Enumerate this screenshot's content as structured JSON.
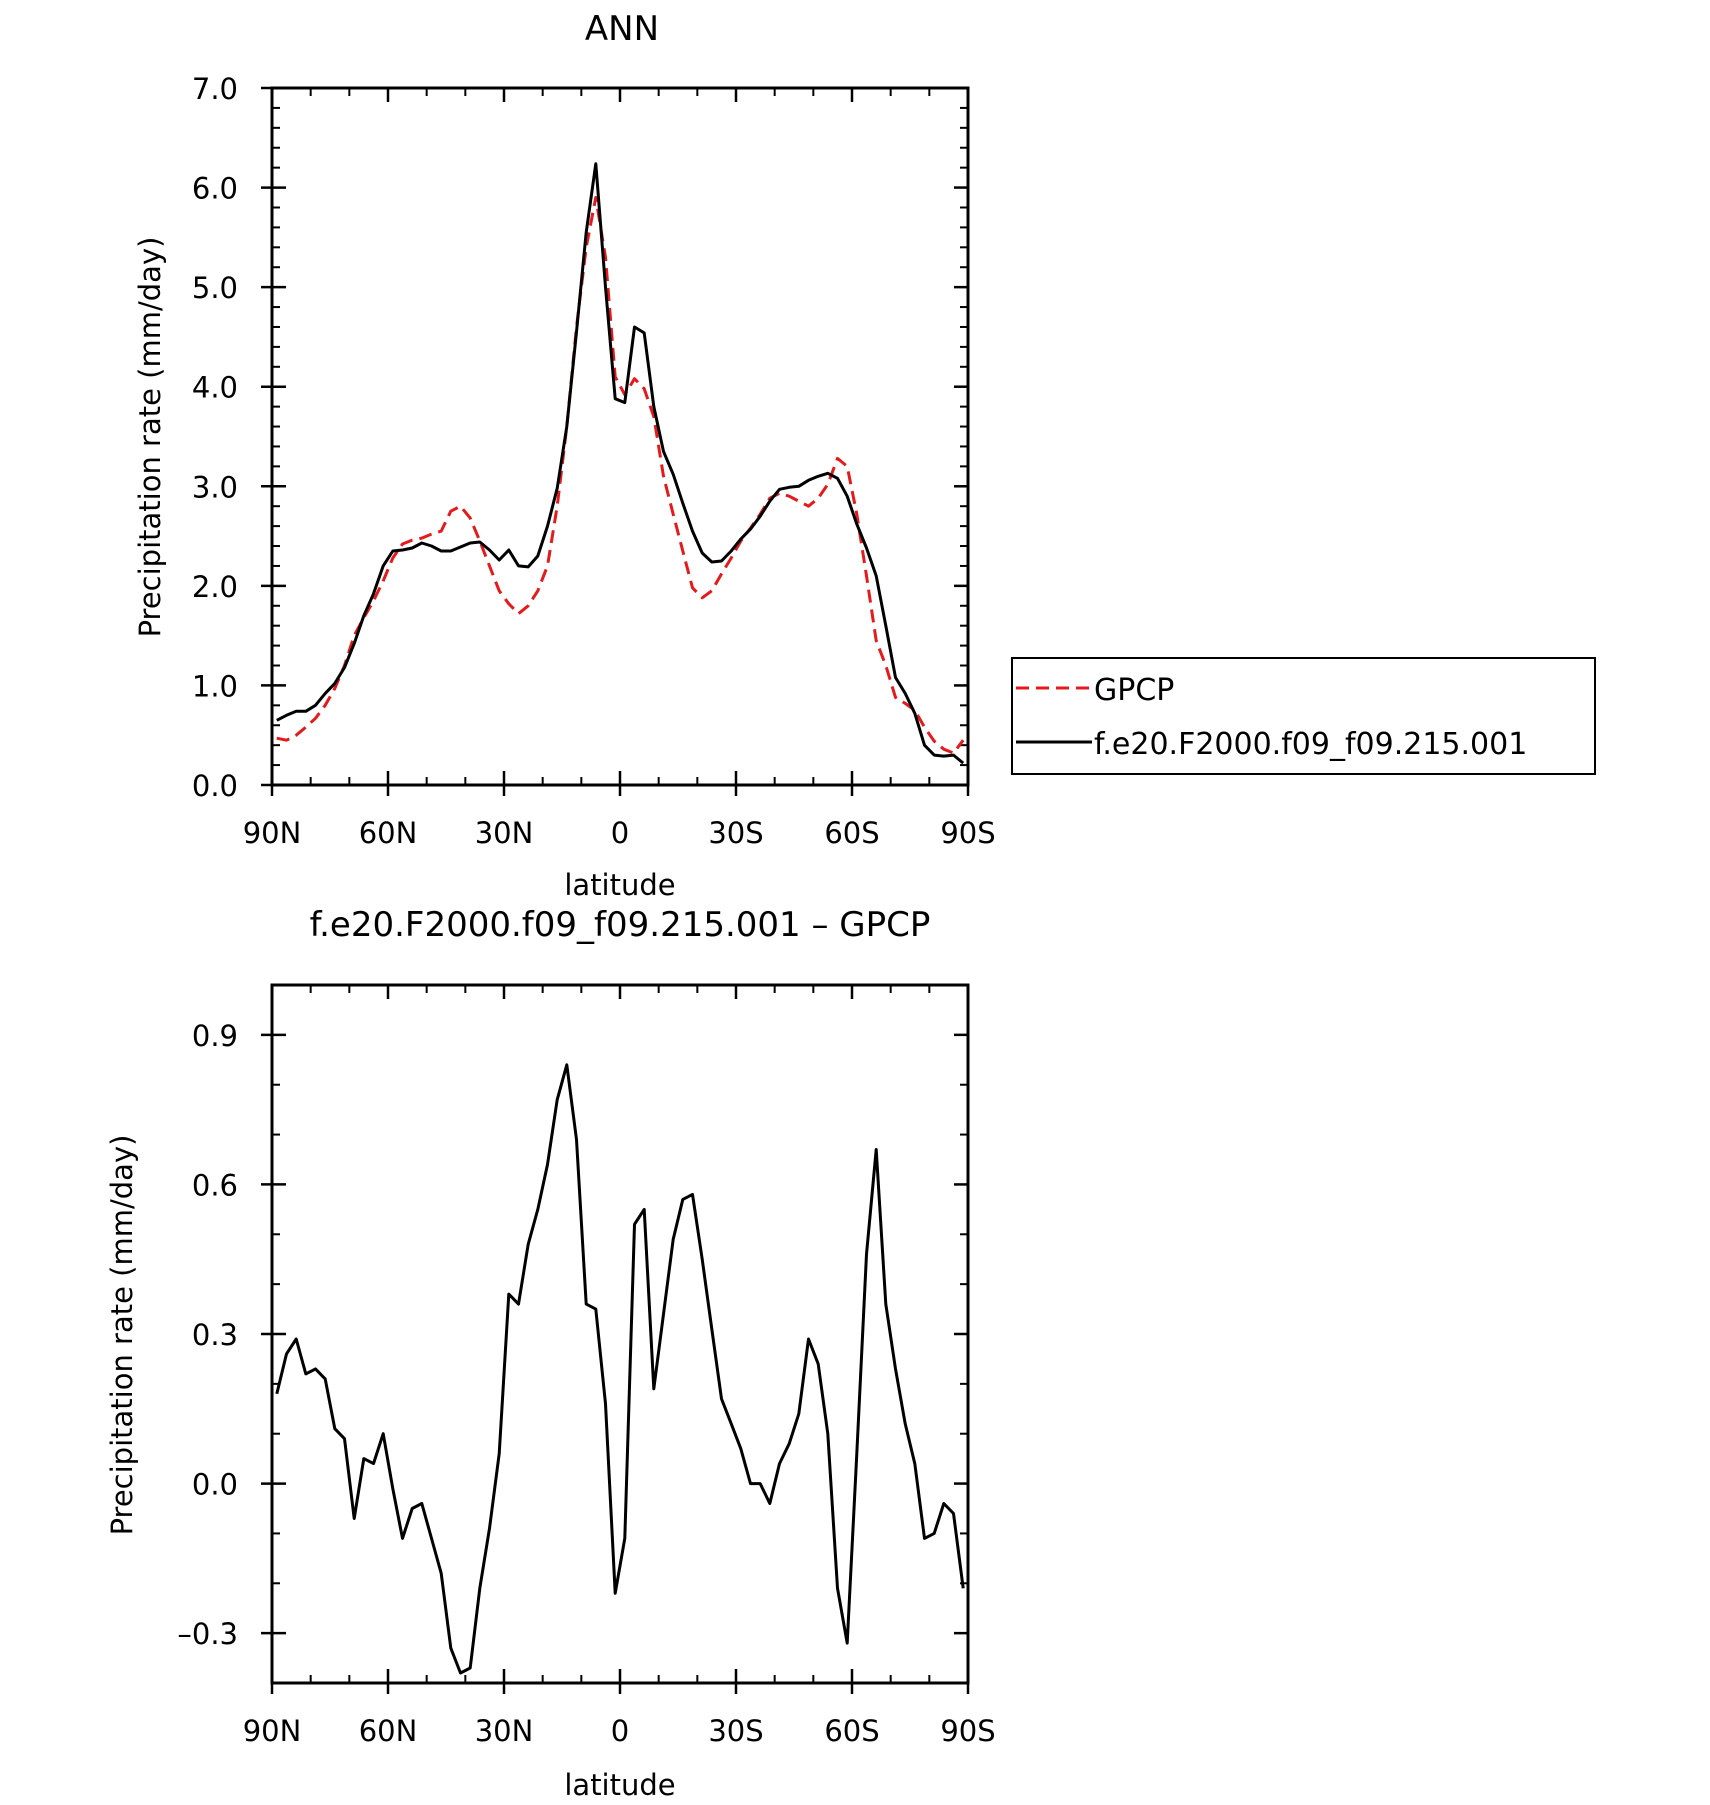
{
  "chart_data": [
    {
      "type": "line",
      "title": "ANN",
      "xlabel": "latitude",
      "ylabel": "Precipitation rate (mm/day)",
      "xlim": [
        90,
        -90
      ],
      "ylim": [
        0.0,
        7.0
      ],
      "x_ticks": [
        90,
        60,
        30,
        0,
        -30,
        -60,
        -90
      ],
      "x_tick_labels": [
        "90N",
        "60N",
        "30N",
        "0",
        "30S",
        "60S",
        "90S"
      ],
      "y_ticks": [
        0,
        1,
        2,
        3,
        4,
        5,
        6,
        7
      ],
      "y_tick_labels": [
        "0.0",
        "1.0",
        "2.0",
        "3.0",
        "4.0",
        "5.0",
        "6.0",
        "7.0"
      ],
      "grid": false,
      "legend": {
        "placement": "outside-right",
        "entries": [
          "GPCP",
          "f.e20.F2000.f09_f09.215.001"
        ]
      },
      "series": [
        {
          "name": "GPCP",
          "color": "#e41a1c",
          "style": "dashed",
          "points": [
            [
              88.75,
              0.47
            ],
            [
              86.25,
              0.45
            ],
            [
              83.75,
              0.5
            ],
            [
              81.25,
              0.58
            ],
            [
              78.75,
              0.67
            ],
            [
              76.25,
              0.8
            ],
            [
              73.75,
              0.97
            ],
            [
              71.25,
              1.2
            ],
            [
              68.75,
              1.5
            ],
            [
              66.25,
              1.68
            ],
            [
              63.75,
              1.85
            ],
            [
              61.25,
              2.05
            ],
            [
              58.75,
              2.28
            ],
            [
              56.25,
              2.42
            ],
            [
              53.75,
              2.46
            ],
            [
              51.25,
              2.48
            ],
            [
              48.75,
              2.52
            ],
            [
              46.25,
              2.55
            ],
            [
              43.75,
              2.75
            ],
            [
              41.25,
              2.8
            ],
            [
              38.75,
              2.68
            ],
            [
              36.25,
              2.45
            ],
            [
              33.75,
              2.2
            ],
            [
              31.25,
              1.95
            ],
            [
              28.75,
              1.82
            ],
            [
              26.25,
              1.72
            ],
            [
              23.75,
              1.8
            ],
            [
              21.25,
              1.95
            ],
            [
              18.75,
              2.2
            ],
            [
              16.25,
              2.8
            ],
            [
              13.75,
              3.6
            ],
            [
              11.25,
              4.6
            ],
            [
              8.75,
              5.4
            ],
            [
              6.25,
              5.9
            ],
            [
              3.75,
              5.3
            ],
            [
              1.25,
              4.1
            ],
            [
              -1.25,
              3.92
            ],
            [
              -3.75,
              4.08
            ],
            [
              -6.25,
              3.98
            ],
            [
              -8.75,
              3.7
            ],
            [
              -11.25,
              3.1
            ],
            [
              -13.75,
              2.72
            ],
            [
              -16.25,
              2.35
            ],
            [
              -18.75,
              1.98
            ],
            [
              -21.25,
              1.88
            ],
            [
              -23.75,
              1.95
            ],
            [
              -26.25,
              2.12
            ],
            [
              -28.75,
              2.28
            ],
            [
              -31.25,
              2.45
            ],
            [
              -33.75,
              2.58
            ],
            [
              -36.25,
              2.72
            ],
            [
              -38.75,
              2.88
            ],
            [
              -41.25,
              2.93
            ],
            [
              -43.75,
              2.9
            ],
            [
              -46.25,
              2.85
            ],
            [
              -48.75,
              2.8
            ],
            [
              -51.25,
              2.88
            ],
            [
              -53.75,
              3.02
            ],
            [
              -56.25,
              3.28
            ],
            [
              -58.75,
              3.2
            ],
            [
              -61.25,
              2.72
            ],
            [
              -63.75,
              2.1
            ],
            [
              -66.25,
              1.45
            ],
            [
              -68.75,
              1.2
            ],
            [
              -71.25,
              0.88
            ],
            [
              -73.75,
              0.82
            ],
            [
              -76.25,
              0.75
            ],
            [
              -78.75,
              0.58
            ],
            [
              -81.25,
              0.44
            ],
            [
              -83.75,
              0.36
            ],
            [
              -86.25,
              0.32
            ],
            [
              -88.75,
              0.45
            ]
          ]
        },
        {
          "name": "f.e20.F2000.f09_f09.215.001",
          "color": "#000000",
          "style": "solid",
          "points": [
            [
              88.75,
              0.65
            ],
            [
              86.25,
              0.7
            ],
            [
              83.75,
              0.74
            ],
            [
              81.25,
              0.74
            ],
            [
              78.75,
              0.8
            ],
            [
              76.25,
              0.92
            ],
            [
              73.75,
              1.02
            ],
            [
              71.25,
              1.18
            ],
            [
              68.75,
              1.42
            ],
            [
              66.25,
              1.7
            ],
            [
              63.75,
              1.92
            ],
            [
              61.25,
              2.2
            ],
            [
              58.75,
              2.35
            ],
            [
              56.25,
              2.36
            ],
            [
              53.75,
              2.38
            ],
            [
              51.25,
              2.43
            ],
            [
              48.75,
              2.4
            ],
            [
              46.25,
              2.35
            ],
            [
              43.75,
              2.35
            ],
            [
              41.25,
              2.39
            ],
            [
              38.75,
              2.43
            ],
            [
              36.25,
              2.44
            ],
            [
              33.75,
              2.36
            ],
            [
              31.25,
              2.26
            ],
            [
              28.75,
              2.36
            ],
            [
              26.25,
              2.2
            ],
            [
              23.75,
              2.19
            ],
            [
              21.25,
              2.3
            ],
            [
              18.75,
              2.6
            ],
            [
              16.25,
              2.98
            ],
            [
              13.75,
              3.6
            ],
            [
              11.25,
              4.55
            ],
            [
              8.75,
              5.55
            ],
            [
              6.25,
              6.24
            ],
            [
              3.75,
              5.0
            ],
            [
              1.25,
              3.88
            ],
            [
              -1.25,
              3.84
            ],
            [
              -3.75,
              4.6
            ],
            [
              -6.25,
              4.54
            ],
            [
              -8.75,
              3.8
            ],
            [
              -11.25,
              3.35
            ],
            [
              -13.75,
              3.12
            ],
            [
              -16.25,
              2.83
            ],
            [
              -18.75,
              2.55
            ],
            [
              -21.25,
              2.33
            ],
            [
              -23.75,
              2.24
            ],
            [
              -26.25,
              2.25
            ],
            [
              -28.75,
              2.35
            ],
            [
              -31.25,
              2.47
            ],
            [
              -33.75,
              2.57
            ],
            [
              -36.25,
              2.7
            ],
            [
              -38.75,
              2.85
            ],
            [
              -41.25,
              2.97
            ],
            [
              -43.75,
              2.99
            ],
            [
              -46.25,
              3.0
            ],
            [
              -48.75,
              3.06
            ],
            [
              -51.25,
              3.1
            ],
            [
              -53.75,
              3.13
            ],
            [
              -56.25,
              3.08
            ],
            [
              -58.75,
              2.9
            ],
            [
              -61.25,
              2.62
            ],
            [
              -63.75,
              2.38
            ],
            [
              -66.25,
              2.1
            ],
            [
              -68.75,
              1.6
            ],
            [
              -71.25,
              1.08
            ],
            [
              -73.75,
              0.92
            ],
            [
              -76.25,
              0.72
            ],
            [
              -78.75,
              0.4
            ],
            [
              -81.25,
              0.3
            ],
            [
              -83.75,
              0.29
            ],
            [
              -86.25,
              0.3
            ],
            [
              -88.75,
              0.22
            ]
          ]
        }
      ]
    },
    {
      "type": "line",
      "title": "f.e20.F2000.f09_f09.215.001 – GPCP",
      "xlabel": "latitude",
      "ylabel": "Precipitation rate (mm/day)",
      "xlim": [
        90,
        -90
      ],
      "ylim": [
        -0.4,
        1.0
      ],
      "x_ticks": [
        90,
        60,
        30,
        0,
        -30,
        -60,
        -90
      ],
      "x_tick_labels": [
        "90N",
        "60N",
        "30N",
        "0",
        "30S",
        "60S",
        "90S"
      ],
      "y_ticks": [
        -0.3,
        0.0,
        0.3,
        0.6,
        0.9
      ],
      "y_tick_labels": [
        "–0.3",
        "0.0",
        "0.3",
        "0.6",
        "0.9"
      ],
      "grid": false,
      "series": [
        {
          "color": "#000000",
          "style": "solid",
          "points": [
            [
              88.75,
              0.18
            ],
            [
              86.25,
              0.26
            ],
            [
              83.75,
              0.29
            ],
            [
              81.25,
              0.22
            ],
            [
              78.75,
              0.23
            ],
            [
              76.25,
              0.21
            ],
            [
              73.75,
              0.11
            ],
            [
              71.25,
              0.09
            ],
            [
              68.75,
              -0.07
            ],
            [
              66.25,
              0.05
            ],
            [
              63.75,
              0.04
            ],
            [
              61.25,
              0.1
            ],
            [
              58.75,
              -0.01
            ],
            [
              56.25,
              -0.11
            ],
            [
              53.75,
              -0.05
            ],
            [
              51.25,
              -0.04
            ],
            [
              48.75,
              -0.11
            ],
            [
              46.25,
              -0.18
            ],
            [
              43.75,
              -0.33
            ],
            [
              41.25,
              -0.38
            ],
            [
              38.75,
              -0.37
            ],
            [
              36.25,
              -0.21
            ],
            [
              33.75,
              -0.09
            ],
            [
              31.25,
              0.06
            ],
            [
              28.75,
              0.38
            ],
            [
              26.25,
              0.36
            ],
            [
              23.75,
              0.48
            ],
            [
              21.25,
              0.55
            ],
            [
              18.75,
              0.64
            ],
            [
              16.25,
              0.77
            ],
            [
              13.75,
              0.84
            ],
            [
              11.25,
              0.69
            ],
            [
              8.75,
              0.36
            ],
            [
              6.25,
              0.35
            ],
            [
              3.75,
              0.16
            ],
            [
              1.25,
              -0.22
            ],
            [
              -1.25,
              -0.11
            ],
            [
              -3.75,
              0.52
            ],
            [
              -6.25,
              0.55
            ],
            [
              -8.75,
              0.19
            ],
            [
              -11.25,
              0.34
            ],
            [
              -13.75,
              0.49
            ],
            [
              -16.25,
              0.57
            ],
            [
              -18.75,
              0.58
            ],
            [
              -21.25,
              0.45
            ],
            [
              -23.75,
              0.31
            ],
            [
              -26.25,
              0.17
            ],
            [
              -28.75,
              0.12
            ],
            [
              -31.25,
              0.07
            ],
            [
              -33.75,
              0.0
            ],
            [
              -36.25,
              0.0
            ],
            [
              -38.75,
              -0.04
            ],
            [
              -41.25,
              0.04
            ],
            [
              -43.75,
              0.08
            ],
            [
              -46.25,
              0.14
            ],
            [
              -48.75,
              0.29
            ],
            [
              -51.25,
              0.24
            ],
            [
              -53.75,
              0.1
            ],
            [
              -56.25,
              -0.21
            ],
            [
              -58.75,
              -0.32
            ],
            [
              -61.25,
              0.06
            ],
            [
              -63.75,
              0.46
            ],
            [
              -66.25,
              0.67
            ],
            [
              -68.75,
              0.36
            ],
            [
              -71.25,
              0.23
            ],
            [
              -73.75,
              0.12
            ],
            [
              -76.25,
              0.04
            ],
            [
              -78.75,
              -0.11
            ],
            [
              -81.25,
              -0.1
            ],
            [
              -83.75,
              -0.04
            ],
            [
              -86.25,
              -0.06
            ],
            [
              -88.75,
              -0.21
            ]
          ]
        }
      ]
    }
  ]
}
